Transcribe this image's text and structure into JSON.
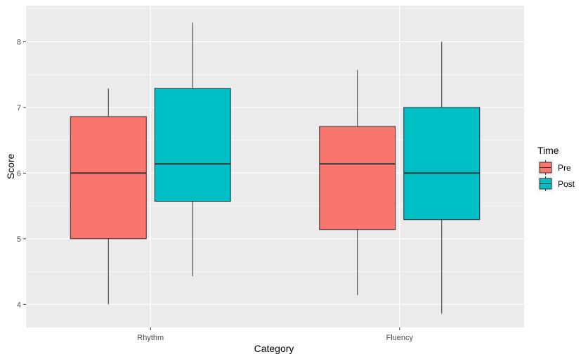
{
  "chart_data": {
    "type": "boxplot",
    "xlabel": "Category",
    "ylabel": "Score",
    "ylim": [
      3.65,
      8.55
    ],
    "yticks": [
      4,
      5,
      6,
      7,
      8
    ],
    "grid": true,
    "legend": {
      "title": "Time",
      "position": "right",
      "entries": [
        {
          "label": "Pre",
          "color": "#F8766D"
        },
        {
          "label": "Post",
          "color": "#00BFC4"
        }
      ]
    },
    "categories": [
      "Rhythm",
      "Fluency"
    ],
    "series": [
      {
        "name": "Pre",
        "color": "#F8766D",
        "boxes": [
          {
            "category": "Rhythm",
            "min": 4.0,
            "q1": 5.0,
            "median": 6.0,
            "q3": 6.86,
            "max": 7.29
          },
          {
            "category": "Fluency",
            "min": 4.14,
            "q1": 5.14,
            "median": 6.14,
            "q3": 6.71,
            "max": 7.57
          }
        ]
      },
      {
        "name": "Post",
        "color": "#00BFC4",
        "boxes": [
          {
            "category": "Rhythm",
            "min": 4.43,
            "q1": 5.57,
            "median": 6.14,
            "q3": 7.29,
            "max": 8.29
          },
          {
            "category": "Fluency",
            "min": 3.86,
            "q1": 5.29,
            "median": 6.0,
            "q3": 7.0,
            "max": 8.0
          }
        ]
      }
    ]
  }
}
